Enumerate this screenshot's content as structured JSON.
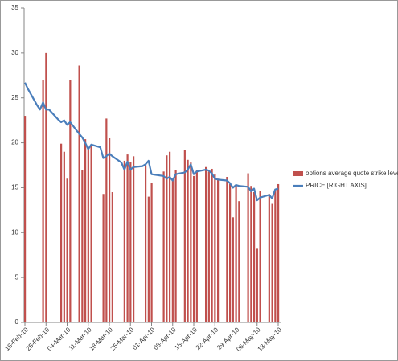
{
  "chart_data": {
    "type": "bar_line",
    "x": [
      "2010-02-18",
      "2010-02-19",
      "2010-02-22",
      "2010-02-23",
      "2010-02-24",
      "2010-02-25",
      "2010-02-26",
      "2010-03-01",
      "2010-03-02",
      "2010-03-03",
      "2010-03-04",
      "2010-03-05",
      "2010-03-08",
      "2010-03-09",
      "2010-03-10",
      "2010-03-11",
      "2010-03-12",
      "2010-03-15",
      "2010-03-16",
      "2010-03-17",
      "2010-03-18",
      "2010-03-19",
      "2010-03-22",
      "2010-03-23",
      "2010-03-24",
      "2010-03-25",
      "2010-03-26",
      "2010-03-29",
      "2010-03-30",
      "2010-03-31",
      "2010-04-01",
      "2010-04-05",
      "2010-04-06",
      "2010-04-07",
      "2010-04-08",
      "2010-04-09",
      "2010-04-12",
      "2010-04-13",
      "2010-04-14",
      "2010-04-15",
      "2010-04-16",
      "2010-04-19",
      "2010-04-20",
      "2010-04-21",
      "2010-04-22",
      "2010-04-23",
      "2010-04-26",
      "2010-04-27",
      "2010-04-28",
      "2010-04-29",
      "2010-04-30",
      "2010-05-03",
      "2010-05-04",
      "2010-05-05",
      "2010-05-06",
      "2010-05-07",
      "2010-05-10",
      "2010-05-11",
      "2010-05-12",
      "2010-05-13"
    ],
    "series": [
      {
        "name": "options average quote strike level",
        "kind": "bar",
        "color": "#c0504d",
        "values": [
          23,
          null,
          null,
          null,
          27,
          30,
          null,
          null,
          19.9,
          19,
          16,
          27,
          28.6,
          17,
          20.4,
          19.5,
          19.8,
          null,
          14.3,
          22.7,
          20.5,
          14.5,
          null,
          18,
          18.7,
          17.9,
          18.5,
          null,
          17.5,
          14,
          15.5,
          16.8,
          18.6,
          19,
          16,
          17,
          19.2,
          18.1,
          17.8,
          16.3,
          17,
          17.3,
          16.8,
          17.1,
          16.5,
          16,
          16.2,
          15.4,
          11.7,
          15.3,
          13.5,
          16.6,
          15.2,
          14.5,
          8.2,
          14.6,
          14.3,
          13.2,
          14.8,
          15.4
        ]
      },
      {
        "name": "PRICE [RIGHT AXIS]",
        "kind": "line",
        "color": "#4a7ebb",
        "values": [
          26.7,
          26.0,
          24.2,
          23.7,
          24.5,
          23.7,
          23.7,
          22.6,
          22.3,
          22.5,
          22.0,
          22.3,
          21.0,
          20.6,
          20.0,
          19.3,
          19.8,
          19.5,
          18.3,
          18.5,
          18.8,
          18.5,
          17.8,
          17.0,
          17.9,
          17.0,
          17.3,
          17.4,
          17.6,
          18.0,
          16.5,
          16.3,
          16.0,
          16.2,
          15.8,
          16.5,
          16.7,
          17.0,
          17.6,
          16.5,
          16.8,
          17.0,
          16.9,
          16.6,
          16.0,
          15.9,
          15.8,
          15.5,
          15.0,
          15.3,
          15.2,
          15.1,
          14.6,
          14.9,
          13.6,
          13.9,
          14.2,
          13.8,
          14.8,
          14.9
        ]
      }
    ],
    "xlim": [
      "2010-02-18",
      "2010-05-13"
    ],
    "xticks": [
      {
        "value": "2010-02-18",
        "label": "18-Feb-10"
      },
      {
        "value": "2010-02-25",
        "label": "25-Feb-10"
      },
      {
        "value": "2010-03-04",
        "label": "04-Mar-10"
      },
      {
        "value": "2010-03-11",
        "label": "11-Mar-10"
      },
      {
        "value": "2010-03-18",
        "label": "18-Mar-10"
      },
      {
        "value": "2010-03-25",
        "label": "25-Mar-10"
      },
      {
        "value": "2010-04-01",
        "label": "01-Apr-10"
      },
      {
        "value": "2010-04-08",
        "label": "08-Apr-10"
      },
      {
        "value": "2010-04-15",
        "label": "15-Apr-10"
      },
      {
        "value": "2010-04-22",
        "label": "22-Apr-10"
      },
      {
        "value": "2010-04-29",
        "label": "29-Apr-10"
      },
      {
        "value": "2010-05-06",
        "label": "06-May-10"
      },
      {
        "value": "2010-05-13",
        "label": "13-May-10"
      }
    ],
    "ylim": [
      0,
      35
    ],
    "yticks": [
      0,
      5,
      10,
      15,
      20,
      25,
      30,
      35
    ],
    "grid": false,
    "legend": "right"
  }
}
